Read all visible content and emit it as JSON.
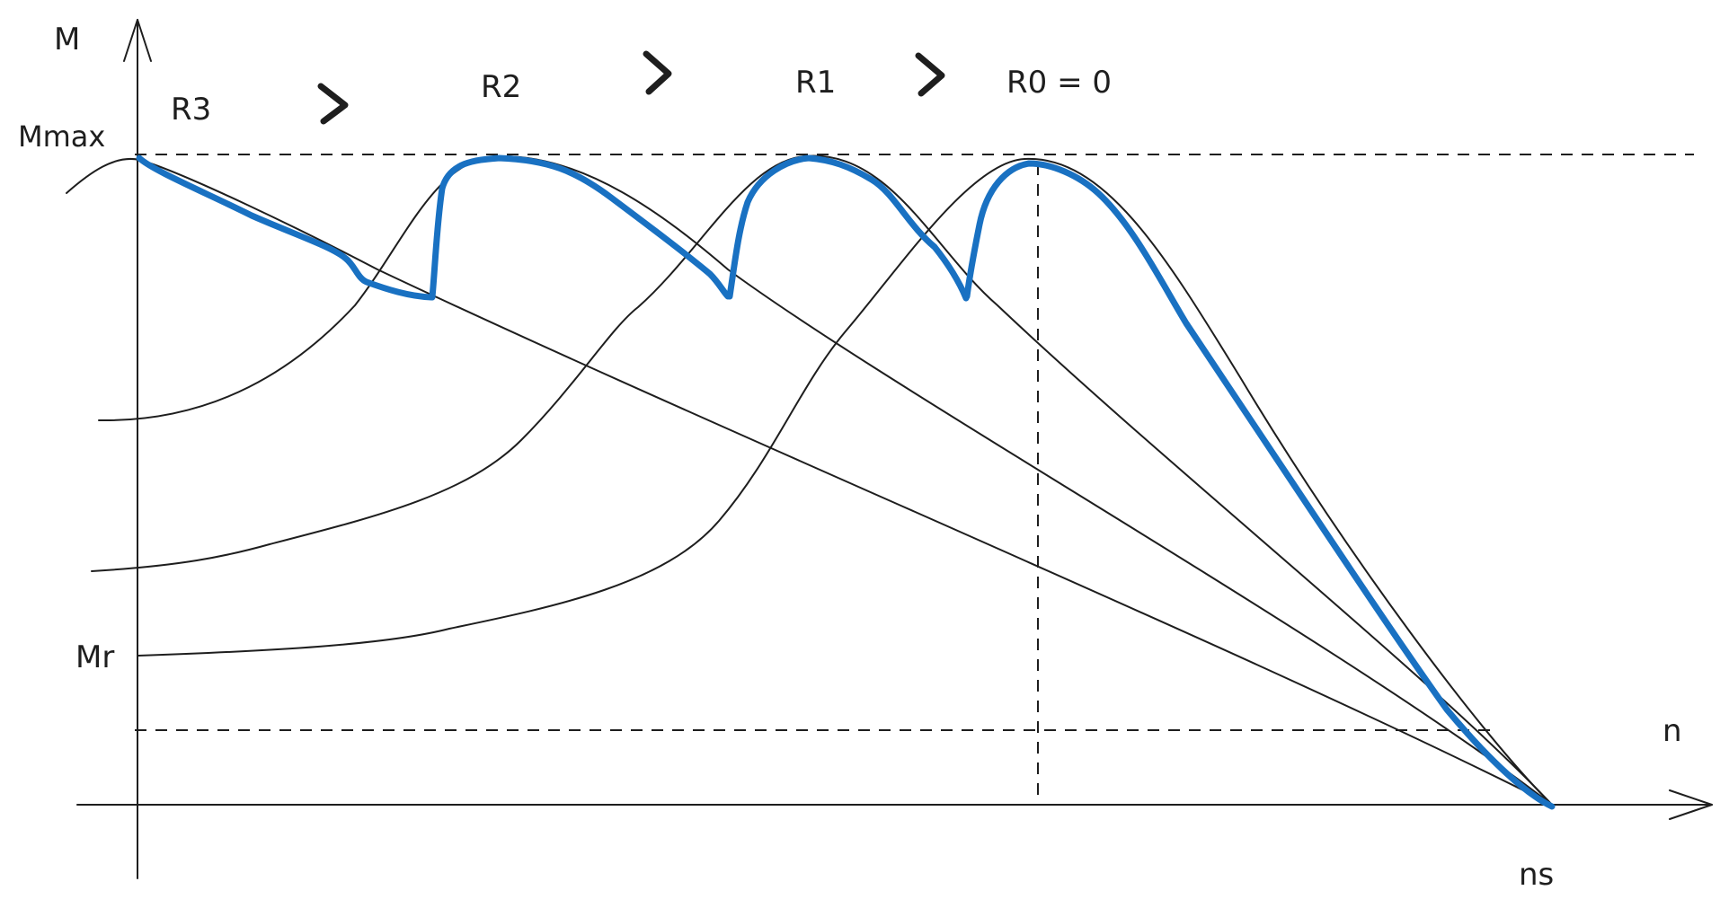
{
  "labels": {
    "y_axis": "M",
    "x_axis": "n",
    "mmax": "Mmax",
    "mr": "Mr",
    "ns": "ns",
    "r3": "R3",
    "r2": "R2",
    "r1": "R1",
    "r0": "R0 = 0"
  },
  "colors": {
    "ink": "#1e1e1e",
    "highlight": "#1971c2"
  },
  "icons": {
    "greater_than": "greater-than-chevron"
  }
}
